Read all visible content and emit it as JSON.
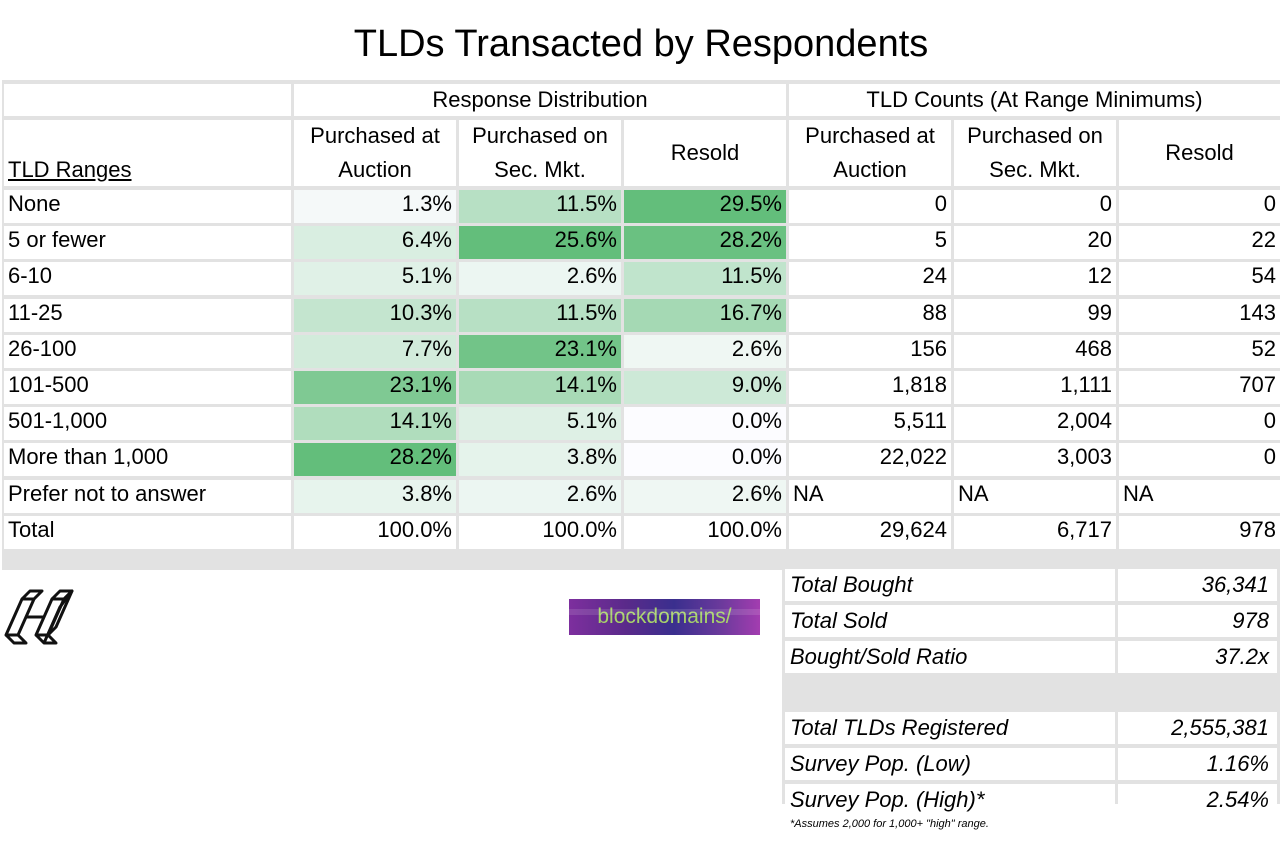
{
  "title": "TLDs Transacted by Respondents",
  "colors": {
    "heat_max": "#63be7b",
    "heat_min": "#fcfcff",
    "grid": "#e2e2e2"
  },
  "header": {
    "group_left": "Response Distribution",
    "group_right": "TLD Counts (At Range Minimums)",
    "row_label": "TLD Ranges",
    "columns": [
      "Purchased at Auction",
      "Purchased on Sec. Mkt.",
      "Resold",
      "Purchased at Auction",
      "Purchased on Sec. Mkt.",
      "Resold"
    ]
  },
  "rows": [
    {
      "label": "None",
      "dist": [
        "1.3%",
        "11.5%",
        "29.5%"
      ],
      "counts": [
        "0",
        "0",
        "0"
      ]
    },
    {
      "label": "5 or fewer",
      "dist": [
        "6.4%",
        "25.6%",
        "28.2%"
      ],
      "counts": [
        "5",
        "20",
        "22"
      ]
    },
    {
      "label": "6-10",
      "dist": [
        "5.1%",
        "2.6%",
        "11.5%"
      ],
      "counts": [
        "24",
        "12",
        "54"
      ]
    },
    {
      "label": "11-25",
      "dist": [
        "10.3%",
        "11.5%",
        "16.7%"
      ],
      "counts": [
        "88",
        "99",
        "143"
      ]
    },
    {
      "label": "26-100",
      "dist": [
        "7.7%",
        "23.1%",
        "2.6%"
      ],
      "counts": [
        "156",
        "468",
        "52"
      ]
    },
    {
      "label": "101-500",
      "dist": [
        "23.1%",
        "14.1%",
        "9.0%"
      ],
      "counts": [
        "1,818",
        "1,111",
        "707"
      ]
    },
    {
      "label": "501-1,000",
      "dist": [
        "14.1%",
        "5.1%",
        "0.0%"
      ],
      "counts": [
        "5,511",
        "2,004",
        "0"
      ]
    },
    {
      "label": "More than 1,000",
      "dist": [
        "28.2%",
        "3.8%",
        "0.0%"
      ],
      "counts": [
        "22,022",
        "3,003",
        "0"
      ]
    },
    {
      "label": "Prefer not to answer",
      "dist": [
        "3.8%",
        "2.6%",
        "2.6%"
      ],
      "counts": [
        "NA",
        "NA",
        "NA"
      ]
    },
    {
      "label": "Total",
      "dist": [
        "100.0%",
        "100.0%",
        "100.0%"
      ],
      "counts": [
        "29,624",
        "6,717",
        "978"
      ]
    }
  ],
  "summary": [
    {
      "label": "Total Bought",
      "value": "36,341"
    },
    {
      "label": "Total Sold",
      "value": "978"
    },
    {
      "label": "Bought/Sold Ratio",
      "value": "37.2x"
    },
    {
      "label": "",
      "value": ""
    },
    {
      "label": "Total TLDs Registered",
      "value": "2,555,381"
    },
    {
      "label": "Survey Pop. (Low)",
      "value": "1.16%"
    },
    {
      "label": "Survey Pop. (High)*",
      "value": "2.54%"
    }
  ],
  "footnote": "*Assumes 2,000 for 1,000+ \"high\" range.",
  "logos": {
    "left_icon": "h-cube-logo-icon",
    "brand_text": "blockdomains/"
  }
}
